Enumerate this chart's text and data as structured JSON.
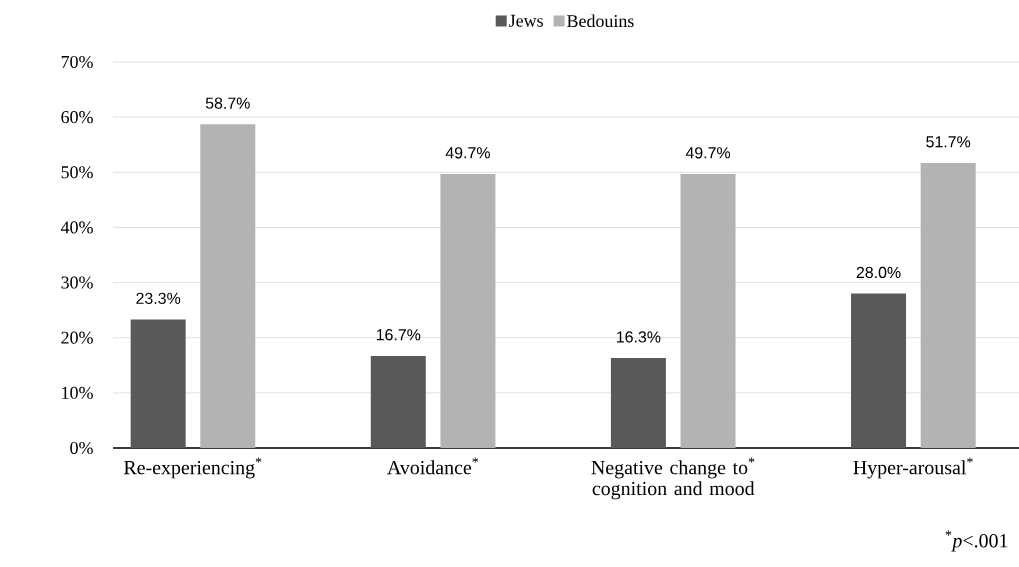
{
  "chart_data": {
    "type": "bar",
    "categories": [
      "Re-experiencing$^{*}$",
      "Avoidance$^{*}$",
      "Negative change to$^{*}$ cognition and mood",
      "Hyper-arousal$^{*}$"
    ],
    "series": [
      {
        "name": "Jews",
        "color": "#595959",
        "values": [
          23.3,
          16.7,
          16.3,
          28.0
        ],
        "value_labels": [
          "23.3%",
          "16.7%",
          "16.3%",
          "28.0%"
        ]
      },
      {
        "name": "Bedouins",
        "color": "#b3b3b3",
        "values": [
          58.7,
          49.7,
          49.7,
          51.7
        ],
        "value_labels": [
          "58.7%",
          "49.7%",
          "49.7%",
          "51.7%"
        ]
      }
    ],
    "ylim": [
      0,
      70
    ],
    "yticks": [
      {
        "value": 0,
        "label": "0%"
      },
      {
        "value": 10,
        "label": "10%"
      },
      {
        "value": 20,
        "label": "20%"
      },
      {
        "value": 30,
        "label": "30%"
      },
      {
        "value": 40,
        "label": "40%"
      },
      {
        "value": 50,
        "label": "50%"
      },
      {
        "value": 60,
        "label": "60%"
      },
      {
        "value": 70,
        "label": "70%"
      }
    ],
    "grid": "y",
    "legend": "top",
    "annotations": [
      "$^{*}$*p*<.001"
    ]
  }
}
